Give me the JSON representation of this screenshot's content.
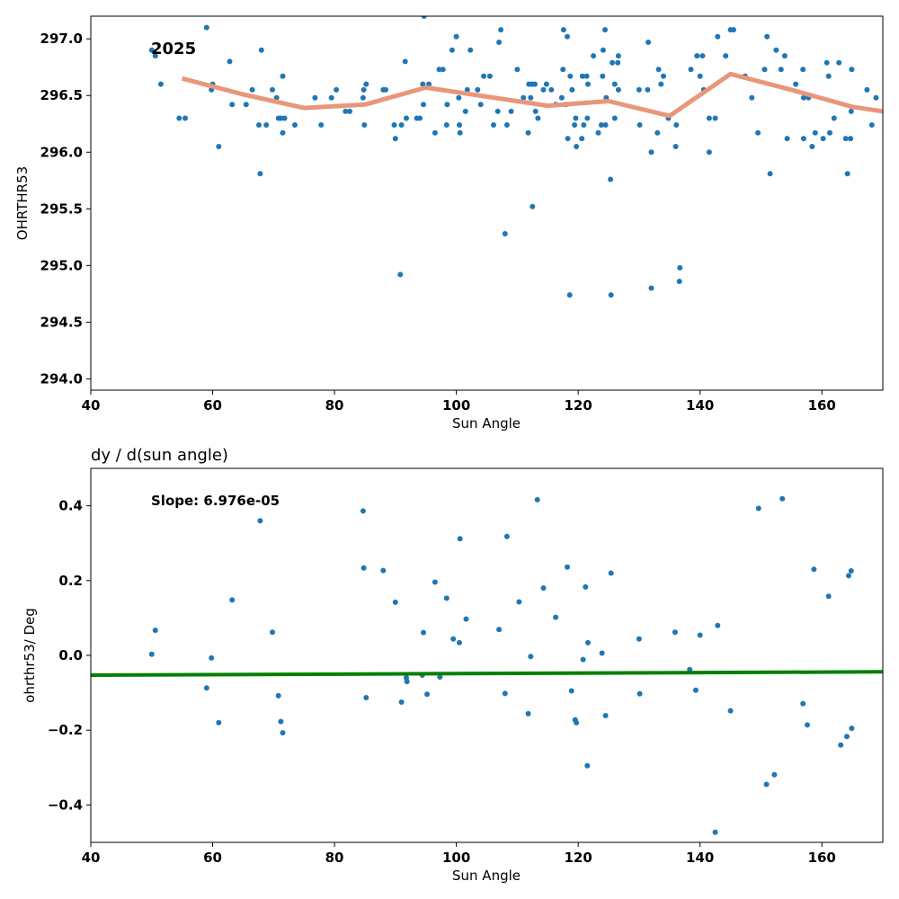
{
  "chart_data": [
    {
      "type": "scatter",
      "title": "",
      "annotation": "2025",
      "xlabel": "Sun Angle",
      "ylabel": "OHRTHR53",
      "xlim": [
        40,
        170
      ],
      "ylim": [
        293.9,
        297.2
      ],
      "xticks": [
        40,
        60,
        80,
        100,
        120,
        140,
        160
      ],
      "yticks": [
        294.0,
        294.5,
        295.0,
        295.5,
        296.0,
        296.5,
        297.0
      ],
      "ytick_labels": [
        "294.0",
        "294.5",
        "295.0",
        "295.5",
        "296.0",
        "296.5",
        "297.0"
      ],
      "grid": false,
      "point_color": "#1f77b4",
      "line_color": "#e9967a",
      "points": [
        [
          50.0,
          296.9
        ],
        [
          50.6,
          296.85
        ],
        [
          51.5,
          296.6
        ],
        [
          54.5,
          296.3
        ],
        [
          55.5,
          296.3
        ],
        [
          59.0,
          297.1
        ],
        [
          59.8,
          296.55
        ],
        [
          60.0,
          296.6
        ],
        [
          61.0,
          296.05
        ],
        [
          62.8,
          296.8
        ],
        [
          63.2,
          296.42
        ],
        [
          65.5,
          296.42
        ],
        [
          66.5,
          296.55
        ],
        [
          67.6,
          296.24
        ],
        [
          67.8,
          295.81
        ],
        [
          68.0,
          296.9
        ],
        [
          68.8,
          296.24
        ],
        [
          69.8,
          296.55
        ],
        [
          70.5,
          296.48
        ],
        [
          70.8,
          296.3
        ],
        [
          71.2,
          296.3
        ],
        [
          71.5,
          296.17
        ],
        [
          71.5,
          296.67
        ],
        [
          71.8,
          296.3
        ],
        [
          73.5,
          296.24
        ],
        [
          76.8,
          296.48
        ],
        [
          77.8,
          296.24
        ],
        [
          79.5,
          296.48
        ],
        [
          80.3,
          296.55
        ],
        [
          81.8,
          296.36
        ],
        [
          82.5,
          296.36
        ],
        [
          84.7,
          296.48
        ],
        [
          84.8,
          296.55
        ],
        [
          84.9,
          296.24
        ],
        [
          85.2,
          296.6
        ],
        [
          88.0,
          296.55
        ],
        [
          88.4,
          296.55
        ],
        [
          89.8,
          296.24
        ],
        [
          90.0,
          296.12
        ],
        [
          90.8,
          294.92
        ],
        [
          91.0,
          296.24
        ],
        [
          91.6,
          296.8
        ],
        [
          91.8,
          296.3
        ],
        [
          93.5,
          296.3
        ],
        [
          94.0,
          296.3
        ],
        [
          94.5,
          296.6
        ],
        [
          94.6,
          296.42
        ],
        [
          94.7,
          297.2
        ],
        [
          95.5,
          296.6
        ],
        [
          96.5,
          296.17
        ],
        [
          97.2,
          296.73
        ],
        [
          97.8,
          296.73
        ],
        [
          98.4,
          296.24
        ],
        [
          98.5,
          296.42
        ],
        [
          99.3,
          296.9
        ],
        [
          100.0,
          297.02
        ],
        [
          100.4,
          296.48
        ],
        [
          100.5,
          296.24
        ],
        [
          100.6,
          296.17
        ],
        [
          101.5,
          296.36
        ],
        [
          101.8,
          296.55
        ],
        [
          102.3,
          296.9
        ],
        [
          103.5,
          296.55
        ],
        [
          104.0,
          296.42
        ],
        [
          104.5,
          296.67
        ],
        [
          105.5,
          296.67
        ],
        [
          106.1,
          296.24
        ],
        [
          106.8,
          296.36
        ],
        [
          107.0,
          296.97
        ],
        [
          107.3,
          297.08
        ],
        [
          108.0,
          295.28
        ],
        [
          108.3,
          296.24
        ],
        [
          109.0,
          296.36
        ],
        [
          110.0,
          296.73
        ],
        [
          111.0,
          296.48
        ],
        [
          111.8,
          296.17
        ],
        [
          111.9,
          296.6
        ],
        [
          112.2,
          296.48
        ],
        [
          112.4,
          296.6
        ],
        [
          112.5,
          295.52
        ],
        [
          112.9,
          296.6
        ],
        [
          113.0,
          296.36
        ],
        [
          113.4,
          296.3
        ],
        [
          114.3,
          296.55
        ],
        [
          114.8,
          296.6
        ],
        [
          115.6,
          296.55
        ],
        [
          116.3,
          296.42
        ],
        [
          117.3,
          296.48
        ],
        [
          117.5,
          296.73
        ],
        [
          117.6,
          297.08
        ],
        [
          118.0,
          296.42
        ],
        [
          118.2,
          297.02
        ],
        [
          118.3,
          296.12
        ],
        [
          118.6,
          294.74
        ],
        [
          118.7,
          296.67
        ],
        [
          119.0,
          296.55
        ],
        [
          119.4,
          296.24
        ],
        [
          119.6,
          296.3
        ],
        [
          119.7,
          296.05
        ],
        [
          120.6,
          296.12
        ],
        [
          120.7,
          296.67
        ],
        [
          120.9,
          296.24
        ],
        [
          121.4,
          296.67
        ],
        [
          121.5,
          296.3
        ],
        [
          121.6,
          296.6
        ],
        [
          122.5,
          296.85
        ],
        [
          123.3,
          296.17
        ],
        [
          123.8,
          296.24
        ],
        [
          124.0,
          296.67
        ],
        [
          124.1,
          296.9
        ],
        [
          124.4,
          297.08
        ],
        [
          124.5,
          296.24
        ],
        [
          124.6,
          296.48
        ],
        [
          125.3,
          295.76
        ],
        [
          125.4,
          294.74
        ],
        [
          125.6,
          296.79
        ],
        [
          126.0,
          296.3
        ],
        [
          126.0,
          296.6
        ],
        [
          126.5,
          296.79
        ],
        [
          126.6,
          296.85
        ],
        [
          126.6,
          296.55
        ],
        [
          130.0,
          296.55
        ],
        [
          130.1,
          296.24
        ],
        [
          131.4,
          296.55
        ],
        [
          131.5,
          296.97
        ],
        [
          132.0,
          296.0
        ],
        [
          132.0,
          294.8
        ],
        [
          133.0,
          296.17
        ],
        [
          133.2,
          296.73
        ],
        [
          133.6,
          296.6
        ],
        [
          134.0,
          296.67
        ],
        [
          134.8,
          296.3
        ],
        [
          136.0,
          296.05
        ],
        [
          136.1,
          296.24
        ],
        [
          136.6,
          294.86
        ],
        [
          136.7,
          294.98
        ],
        [
          138.5,
          296.73
        ],
        [
          139.5,
          296.85
        ],
        [
          140.0,
          296.67
        ],
        [
          140.4,
          296.85
        ],
        [
          140.6,
          296.55
        ],
        [
          141.5,
          296.3
        ],
        [
          141.5,
          296.0
        ],
        [
          142.5,
          296.3
        ],
        [
          142.9,
          297.02
        ],
        [
          144.2,
          296.85
        ],
        [
          145.0,
          297.08
        ],
        [
          145.5,
          297.08
        ],
        [
          147.4,
          296.67
        ],
        [
          148.5,
          296.48
        ],
        [
          149.5,
          296.17
        ],
        [
          150.6,
          296.73
        ],
        [
          151.0,
          297.02
        ],
        [
          151.5,
          295.81
        ],
        [
          152.5,
          296.9
        ],
        [
          153.3,
          296.73
        ],
        [
          153.9,
          296.85
        ],
        [
          154.3,
          296.12
        ],
        [
          155.7,
          296.6
        ],
        [
          156.9,
          296.73
        ],
        [
          157.0,
          296.12
        ],
        [
          157.0,
          296.48
        ],
        [
          157.8,
          296.48
        ],
        [
          158.4,
          296.05
        ],
        [
          158.9,
          296.17
        ],
        [
          160.2,
          296.12
        ],
        [
          160.8,
          296.79
        ],
        [
          161.1,
          296.67
        ],
        [
          161.3,
          296.17
        ],
        [
          162.0,
          296.3
        ],
        [
          162.8,
          296.79
        ],
        [
          163.9,
          296.12
        ],
        [
          164.2,
          295.81
        ],
        [
          164.7,
          296.12
        ],
        [
          164.9,
          296.73
        ],
        [
          164.8,
          296.36
        ],
        [
          167.4,
          296.55
        ],
        [
          168.2,
          296.24
        ],
        [
          168.9,
          296.48
        ]
      ],
      "trend_line": [
        [
          55,
          296.65
        ],
        [
          65,
          296.51
        ],
        [
          75,
          296.39
        ],
        [
          85,
          296.42
        ],
        [
          95,
          296.57
        ],
        [
          105,
          296.49
        ],
        [
          115,
          296.41
        ],
        [
          125,
          296.45
        ],
        [
          135,
          296.32
        ],
        [
          145,
          296.69
        ],
        [
          155,
          296.55
        ],
        [
          165,
          296.4
        ],
        [
          170,
          296.36
        ]
      ]
    },
    {
      "type": "scatter",
      "title": "dy / d(sun angle)",
      "annotation": "Slope: 6.976e-05",
      "xlabel": "Sun Angle",
      "ylabel": "ohrthr53/ Deg",
      "xlim": [
        40,
        170
      ],
      "ylim": [
        -0.5,
        0.5
      ],
      "xticks": [
        40,
        60,
        80,
        100,
        120,
        140,
        160
      ],
      "yticks": [
        -0.4,
        -0.2,
        0.0,
        0.2,
        0.4
      ],
      "ytick_labels": [
        "−0.4",
        "−0.2",
        "0.0",
        "0.2",
        "0.4"
      ],
      "grid": false,
      "point_color": "#1f77b4",
      "line_color": "#008000",
      "points": [
        [
          50.0,
          0.003
        ],
        [
          50.6,
          0.067
        ],
        [
          59.0,
          -0.087
        ],
        [
          59.8,
          -0.007
        ],
        [
          61.0,
          -0.18
        ],
        [
          63.2,
          0.148
        ],
        [
          67.8,
          0.36
        ],
        [
          69.8,
          0.062
        ],
        [
          70.8,
          -0.108
        ],
        [
          71.2,
          -0.177
        ],
        [
          71.5,
          -0.207
        ],
        [
          84.7,
          0.386
        ],
        [
          84.8,
          0.234
        ],
        [
          85.2,
          -0.113
        ],
        [
          88.0,
          0.227
        ],
        [
          90.0,
          0.142
        ],
        [
          91.0,
          -0.125
        ],
        [
          91.8,
          -0.06
        ],
        [
          91.9,
          -0.07
        ],
        [
          94.4,
          -0.053
        ],
        [
          94.6,
          0.061
        ],
        [
          95.2,
          -0.104
        ],
        [
          96.5,
          0.196
        ],
        [
          97.3,
          -0.058
        ],
        [
          98.4,
          0.153
        ],
        [
          99.5,
          0.044
        ],
        [
          100.5,
          0.034
        ],
        [
          100.6,
          0.312
        ],
        [
          101.6,
          0.097
        ],
        [
          107.0,
          0.069
        ],
        [
          108.0,
          -0.102
        ],
        [
          108.3,
          0.318
        ],
        [
          110.3,
          0.143
        ],
        [
          111.8,
          -0.156
        ],
        [
          112.2,
          -0.003
        ],
        [
          113.3,
          0.416
        ],
        [
          114.3,
          0.18
        ],
        [
          116.3,
          0.102
        ],
        [
          118.2,
          0.236
        ],
        [
          118.9,
          -0.095
        ],
        [
          119.5,
          -0.172
        ],
        [
          119.7,
          -0.18
        ],
        [
          120.8,
          -0.011
        ],
        [
          121.2,
          0.183
        ],
        [
          121.5,
          -0.295
        ],
        [
          121.6,
          0.034
        ],
        [
          123.9,
          0.006
        ],
        [
          124.5,
          -0.161
        ],
        [
          125.4,
          0.22
        ],
        [
          130.0,
          0.044
        ],
        [
          130.1,
          -0.103
        ],
        [
          135.9,
          0.062
        ],
        [
          138.3,
          -0.038
        ],
        [
          139.3,
          -0.093
        ],
        [
          140.0,
          0.054
        ],
        [
          142.5,
          -0.473
        ],
        [
          142.9,
          0.08
        ],
        [
          145.0,
          -0.148
        ],
        [
          149.6,
          0.393
        ],
        [
          150.9,
          -0.345
        ],
        [
          152.2,
          -0.319
        ],
        [
          153.5,
          0.419
        ],
        [
          156.9,
          -0.129
        ],
        [
          157.6,
          -0.186
        ],
        [
          158.7,
          0.23
        ],
        [
          161.1,
          0.158
        ],
        [
          163.1,
          -0.24
        ],
        [
          164.1,
          -0.217
        ],
        [
          164.4,
          0.213
        ],
        [
          164.8,
          0.226
        ],
        [
          164.9,
          -0.195
        ]
      ],
      "trend_line": [
        [
          40,
          -0.053
        ],
        [
          170,
          -0.044
        ]
      ]
    }
  ]
}
